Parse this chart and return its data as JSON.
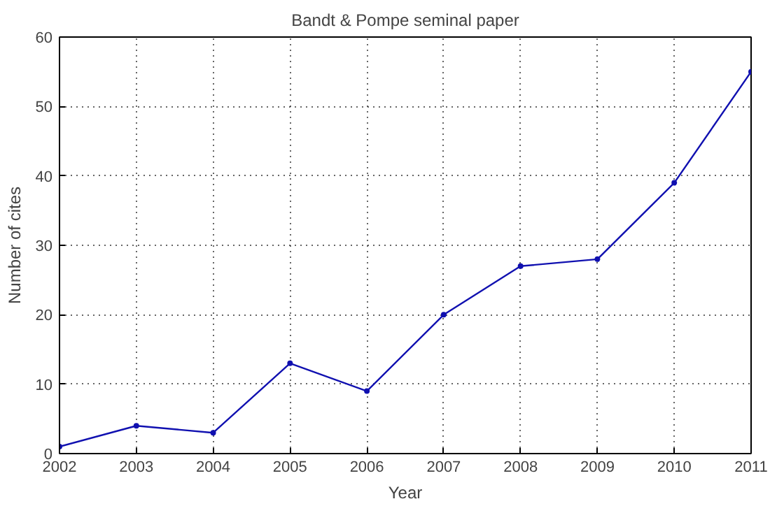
{
  "chart_data": {
    "type": "line",
    "title": "Bandt & Pompe seminal paper",
    "xlabel": "Year",
    "ylabel": "Number of cites",
    "x": [
      2002,
      2003,
      2004,
      2005,
      2006,
      2007,
      2008,
      2009,
      2010,
      2011
    ],
    "series": [
      {
        "color": "#1010b0",
        "values": [
          1,
          4,
          3,
          13,
          9,
          20,
          27,
          28,
          39,
          55
        ]
      }
    ],
    "xlim": [
      2002,
      2011
    ],
    "xticks": [
      2002,
      2003,
      2004,
      2005,
      2006,
      2007,
      2008,
      2009,
      2010,
      2011
    ],
    "ylim": [
      0,
      60
    ],
    "yticks": [
      0,
      10,
      20,
      30,
      40,
      50,
      60
    ],
    "grid": true,
    "marker": "circle",
    "line_style": "solid"
  }
}
